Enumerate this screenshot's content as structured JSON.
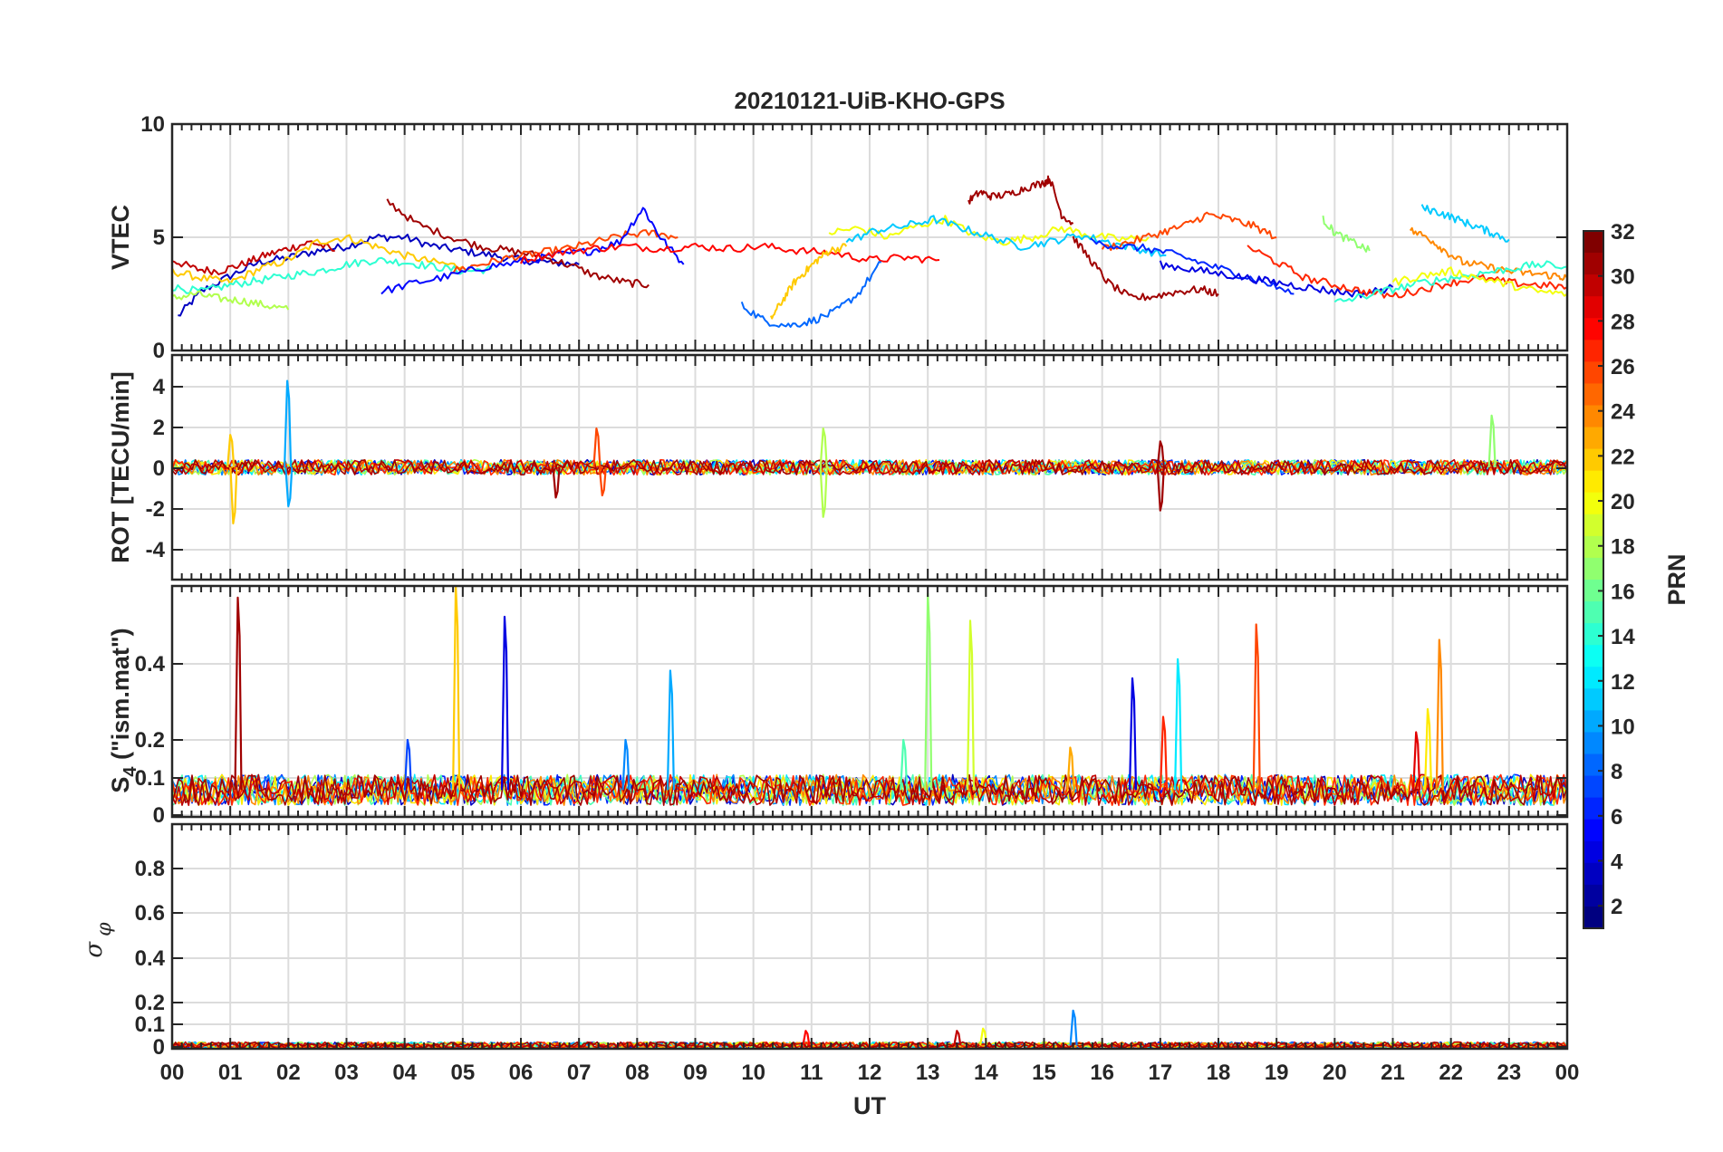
{
  "title": "20210121-UiB-KHO-GPS",
  "chart_data": {
    "type": "line",
    "title": "20210121-UiB-KHO-GPS",
    "xlabel": "UT",
    "xticks": [
      "00",
      "01",
      "02",
      "03",
      "04",
      "05",
      "06",
      "07",
      "08",
      "09",
      "10",
      "11",
      "12",
      "13",
      "14",
      "15",
      "16",
      "17",
      "18",
      "19",
      "20",
      "21",
      "22",
      "23",
      "00"
    ],
    "xlim": [
      0,
      24
    ],
    "grid": true,
    "colorbar": {
      "label": "PRN",
      "range": [
        1,
        32
      ],
      "ticks": [
        "32",
        "30",
        "28",
        "26",
        "24",
        "22",
        "20",
        "18",
        "16",
        "14",
        "12",
        "10",
        "8",
        "6",
        "4",
        "2"
      ],
      "colormap": "jet"
    },
    "panels": [
      {
        "name": "vtec",
        "ylabel": "VTEC",
        "ylim": [
          0,
          10
        ],
        "yticks": [
          "10",
          "5",
          "0"
        ],
        "series": [
          {
            "prn": 3,
            "x": [
              0.1,
              0.5,
              1.0,
              1.5,
              2.0,
              2.5,
              3.0,
              3.5,
              4.0,
              4.5,
              5.0,
              5.5,
              6.0,
              6.5,
              7.0
            ],
            "y": [
              1.5,
              2.6,
              3.3,
              3.9,
              4.1,
              4.4,
              4.6,
              5.0,
              5.0,
              4.6,
              4.4,
              4.2,
              4.0,
              3.9,
              3.8
            ]
          },
          {
            "prn": 30,
            "x": [
              0.0,
              0.4,
              0.8,
              1.2,
              1.6,
              2.0,
              2.4,
              2.8
            ],
            "y": [
              4.0,
              3.6,
              3.5,
              3.8,
              4.2,
              4.5,
              4.8,
              4.4
            ]
          },
          {
            "prn": 22,
            "x": [
              0.0,
              0.5,
              1.0,
              1.5,
              2.0,
              2.5,
              3.0,
              3.5,
              4.0,
              4.5,
              5.0
            ],
            "y": [
              3.5,
              3.2,
              3.0,
              3.6,
              4.0,
              4.8,
              5.0,
              4.6,
              4.2,
              3.9,
              3.7
            ]
          },
          {
            "prn": 14,
            "x": [
              0.0,
              0.5,
              1.0,
              1.5,
              2.0,
              2.5,
              3.0,
              3.5,
              4.0,
              4.5,
              5.0,
              5.5
            ],
            "y": [
              2.8,
              2.6,
              2.9,
              3.1,
              3.3,
              3.5,
              3.8,
              4.0,
              3.9,
              3.7,
              3.5,
              3.6
            ]
          },
          {
            "prn": 18,
            "x": [
              0.0,
              0.4,
              0.8,
              1.2,
              1.6,
              2.0
            ],
            "y": [
              2.3,
              2.5,
              2.3,
              2.2,
              2.0,
              1.8
            ]
          },
          {
            "prn": 31,
            "x": [
              3.7,
              4.2,
              4.8,
              5.3,
              5.8,
              6.3,
              6.8,
              7.3,
              7.8,
              8.2
            ],
            "y": [
              6.6,
              5.6,
              5.0,
              4.6,
              4.4,
              4.2,
              3.8,
              3.3,
              3.0,
              2.9
            ]
          },
          {
            "prn": 26,
            "x": [
              4.8,
              5.3,
              5.8,
              6.3,
              6.8,
              7.3,
              7.8,
              8.3,
              8.7
            ],
            "y": [
              3.5,
              3.8,
              4.1,
              4.3,
              4.5,
              4.8,
              5.1,
              5.2,
              5.0
            ]
          },
          {
            "prn": 5,
            "x": [
              3.6,
              4.2,
              4.8,
              5.4,
              6.0,
              6.6,
              7.2,
              7.7,
              8.1,
              8.4,
              8.8
            ],
            "y": [
              2.6,
              3.0,
              3.3,
              3.7,
              3.9,
              4.2,
              4.4,
              4.8,
              6.3,
              5.0,
              3.8
            ]
          },
          {
            "prn": 28,
            "x": [
              6.0,
              6.6,
              7.2,
              7.8,
              8.4,
              9.0,
              9.6,
              10.2,
              10.8,
              11.4,
              12.0,
              12.6,
              13.2
            ],
            "y": [
              4.0,
              4.3,
              4.5,
              4.6,
              4.5,
              4.6,
              4.5,
              4.6,
              4.4,
              4.3,
              4.0,
              4.1,
              4.0
            ]
          },
          {
            "prn": 8,
            "x": [
              9.8,
              10.2,
              10.6,
              11.0,
              11.4,
              11.8,
              12.2
            ],
            "y": [
              2.0,
              1.3,
              1.1,
              1.3,
              1.7,
              2.5,
              3.9
            ]
          },
          {
            "prn": 22,
            "x": [
              10.3,
              10.5,
              10.7,
              10.9,
              11.1,
              11.3,
              11.6
            ],
            "y": [
              1.4,
              2.2,
              3.0,
              3.5,
              4.0,
              4.4,
              4.6
            ]
          },
          {
            "prn": 20,
            "x": [
              11.3,
              11.8,
              12.3,
              12.8,
              13.3,
              13.8,
              14.3,
              14.8,
              15.3,
              15.8,
              16.3,
              16.8
            ],
            "y": [
              5.2,
              5.4,
              5.0,
              5.5,
              5.8,
              5.1,
              4.8,
              5.0,
              5.4,
              5.1,
              4.9,
              5.0
            ]
          },
          {
            "prn": 11,
            "x": [
              11.6,
              12.1,
              12.6,
              13.1,
              13.6,
              14.1,
              14.6,
              15.1,
              15.6,
              16.1,
              16.6,
              17.1
            ],
            "y": [
              4.8,
              5.3,
              5.5,
              5.8,
              5.4,
              5.0,
              4.6,
              4.8,
              5.1,
              4.8,
              4.5,
              4.2
            ]
          },
          {
            "prn": 31,
            "x": [
              13.7,
              13.9,
              14.1,
              14.4,
              14.7,
              15.0,
              15.1,
              15.3,
              15.5
            ],
            "y": [
              6.6,
              7.0,
              6.8,
              6.9,
              7.2,
              7.4,
              7.6,
              6.0,
              5.6
            ]
          },
          {
            "prn": 31,
            "x": [
              15.5,
              15.8,
              16.1,
              16.5,
              16.9,
              17.3,
              17.7,
              18.0
            ],
            "y": [
              5.0,
              4.0,
              3.0,
              2.3,
              2.4,
              2.6,
              2.7,
              2.5
            ]
          },
          {
            "prn": 26,
            "x": [
              16.0,
              16.5,
              17.0,
              17.4,
              17.8,
              18.2,
              18.6,
              19.0
            ],
            "y": [
              4.5,
              4.8,
              5.2,
              5.5,
              6.0,
              5.8,
              5.5,
              5.0
            ]
          },
          {
            "prn": 6,
            "x": [
              15.8,
              16.3,
              16.8,
              17.3,
              17.8,
              18.3,
              18.8,
              19.3
            ],
            "y": [
              4.8,
              4.6,
              4.5,
              4.2,
              3.8,
              3.4,
              3.0,
              2.5
            ]
          },
          {
            "prn": 4,
            "x": [
              17.0,
              17.5,
              18.0,
              18.5,
              19.0,
              19.5,
              20.0,
              20.5,
              21.0
            ],
            "y": [
              3.8,
              3.6,
              3.4,
              3.2,
              3.0,
              2.8,
              2.6,
              2.5,
              2.8
            ]
          },
          {
            "prn": 17,
            "x": [
              19.8,
              20.0,
              20.3,
              20.6
            ],
            "y": [
              5.8,
              5.2,
              4.8,
              4.4
            ]
          },
          {
            "prn": 27,
            "x": [
              18.5,
              19.0,
              19.5,
              20.0,
              20.5,
              21.0,
              21.5,
              22.0,
              22.5,
              23.0,
              23.5,
              24.0
            ],
            "y": [
              4.6,
              3.9,
              3.2,
              2.9,
              2.6,
              2.4,
              2.7,
              3.0,
              3.2,
              3.0,
              2.9,
              2.8
            ]
          },
          {
            "prn": 11,
            "x": [
              21.5,
              21.8,
              22.1,
              22.4,
              22.7,
              23.0
            ],
            "y": [
              6.3,
              6.1,
              5.8,
              5.5,
              5.2,
              4.9
            ]
          },
          {
            "prn": 24,
            "x": [
              21.3,
              21.6,
              21.9,
              22.2,
              22.6,
              23.0,
              23.4,
              23.8,
              24.0
            ],
            "y": [
              5.3,
              5.0,
              4.4,
              3.9,
              3.7,
              3.5,
              3.4,
              3.3,
              3.2
            ]
          },
          {
            "prn": 14,
            "x": [
              20.0,
              20.5,
              21.0,
              21.5,
              22.0,
              22.5,
              23.0,
              23.5,
              24.0
            ],
            "y": [
              2.1,
              2.4,
              2.7,
              3.0,
              3.2,
              3.4,
              3.6,
              3.8,
              3.7
            ]
          },
          {
            "prn": 20,
            "x": [
              21.0,
              21.5,
              22.0,
              22.5,
              23.0,
              23.5,
              24.0
            ],
            "y": [
              3.0,
              3.3,
              3.5,
              3.2,
              2.9,
              2.6,
              2.5
            ]
          }
        ]
      },
      {
        "name": "rot",
        "ylabel": "ROT [TECU/min]",
        "ylim": [
          -5.2,
          5.2
        ],
        "yticks": [
          "4",
          "2",
          "0",
          "-2",
          "-4"
        ],
        "spikes": [
          {
            "prn": 22,
            "x": 1.05,
            "y": -2.6
          },
          {
            "prn": 22,
            "x": 1.0,
            "y": 1.5
          },
          {
            "prn": 10,
            "x": 1.98,
            "y": 4.0
          },
          {
            "prn": 10,
            "x": 2.0,
            "y": -1.8
          },
          {
            "prn": 31,
            "x": 6.6,
            "y": -1.4
          },
          {
            "prn": 26,
            "x": 7.3,
            "y": 1.8
          },
          {
            "prn": 26,
            "x": 7.4,
            "y": -1.3
          },
          {
            "prn": 18,
            "x": 11.2,
            "y": 1.8
          },
          {
            "prn": 18,
            "x": 11.2,
            "y": -2.3
          },
          {
            "prn": 31,
            "x": 17.0,
            "y": -2.0
          },
          {
            "prn": 31,
            "x": 17.0,
            "y": 1.2
          },
          {
            "prn": 17,
            "x": 22.7,
            "y": 2.4
          }
        ]
      },
      {
        "name": "s4",
        "ylabel": "S4 (\"ism.mat\")",
        "ylabel_main": "S",
        "ylabel_sub": "4",
        "ylabel_rest": " (\"ism.mat\")",
        "ylim": [
          0,
          0.6
        ],
        "yticks": [
          "0.4",
          "0.2",
          "0.1",
          "0"
        ],
        "spikes": [
          {
            "prn": 31,
            "x": 1.13,
            "y": 0.57
          },
          {
            "prn": 22,
            "x": 4.88,
            "y": 0.6
          },
          {
            "prn": 4,
            "x": 5.72,
            "y": 0.52
          },
          {
            "prn": 10,
            "x": 8.57,
            "y": 0.38
          },
          {
            "prn": 17,
            "x": 13.0,
            "y": 0.58
          },
          {
            "prn": 19,
            "x": 13.73,
            "y": 0.51
          },
          {
            "prn": 4,
            "x": 16.52,
            "y": 0.36
          },
          {
            "prn": 12,
            "x": 17.3,
            "y": 0.41
          },
          {
            "prn": 27,
            "x": 17.05,
            "y": 0.26
          },
          {
            "prn": 26,
            "x": 18.65,
            "y": 0.5
          },
          {
            "prn": 24,
            "x": 21.8,
            "y": 0.46
          },
          {
            "prn": 21,
            "x": 21.6,
            "y": 0.28
          },
          {
            "prn": 29,
            "x": 21.4,
            "y": 0.22
          },
          {
            "prn": 7,
            "x": 4.05,
            "y": 0.2
          },
          {
            "prn": 15,
            "x": 12.58,
            "y": 0.2
          },
          {
            "prn": 23,
            "x": 15.45,
            "y": 0.18
          },
          {
            "prn": 9,
            "x": 7.8,
            "y": 0.2
          }
        ]
      },
      {
        "name": "sigma_phi",
        "ylabel": "σ φ",
        "ylabel_main": "σ",
        "ylabel_sub": "φ",
        "ylim": [
          0,
          1
        ],
        "yticks": [
          "0.8",
          "0.6",
          "0.4",
          "0.2",
          "0.1",
          "0"
        ],
        "spikes": [
          {
            "prn": 9,
            "x": 15.5,
            "y": 0.17
          },
          {
            "prn": 30,
            "x": 13.5,
            "y": 0.08
          },
          {
            "prn": 28,
            "x": 10.9,
            "y": 0.08
          },
          {
            "prn": 20,
            "x": 13.95,
            "y": 0.09
          }
        ]
      }
    ]
  }
}
